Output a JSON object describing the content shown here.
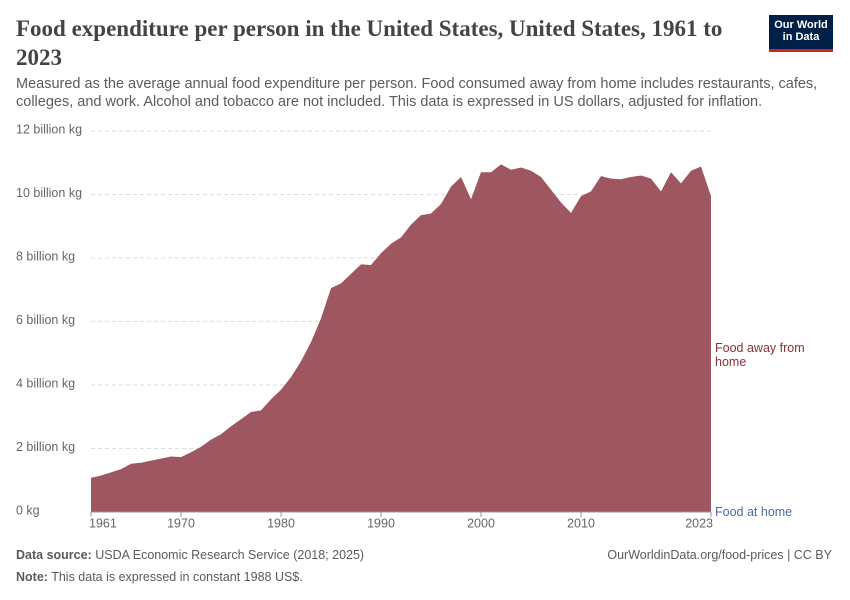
{
  "chart_data": {
    "type": "stacked_area",
    "title": "Food expenditure per person in the United States, United States, 1961 to 2023",
    "subtitle": "Measured as the average annual food expenditure per person. Food consumed away from home includes restaurants, cafes, colleges, and work. Alcohol and tobacco are not included. This data is expressed in US dollars, adjusted for inflation.",
    "logo": [
      "Our World",
      "in Data"
    ],
    "source_label": "Data source:",
    "source": "USDA Economic Research Service (2018; 2025)",
    "note_label": "Note:",
    "note": "This data is expressed in constant 1988 US$.",
    "credit": "OurWorldinData.org/food-prices | CC BY",
    "x": [
      1961,
      1962,
      1963,
      1964,
      1965,
      1966,
      1967,
      1968,
      1969,
      1970,
      1971,
      1972,
      1973,
      1974,
      1975,
      1976,
      1977,
      1978,
      1979,
      1980,
      1981,
      1982,
      1983,
      1984,
      1985,
      1986,
      1987,
      1988,
      1989,
      1990,
      1991,
      1992,
      1993,
      1994,
      1995,
      1996,
      1997,
      1998,
      1999,
      2000,
      2001,
      2002,
      2003,
      2004,
      2005,
      2006,
      2007,
      2008,
      2009,
      2010,
      2011,
      2012,
      2013,
      2014,
      2015,
      2016,
      2017,
      2018,
      2019,
      2020,
      2021,
      2022,
      2023
    ],
    "xlim": [
      1961,
      2023
    ],
    "xticks": [
      1961,
      1970,
      1980,
      1990,
      2000,
      2010,
      2023
    ],
    "ylim": [
      0,
      12
    ],
    "yticks": [
      {
        "value": 0,
        "label": "0 kg"
      },
      {
        "value": 2,
        "label": "2 billion kg"
      },
      {
        "value": 4,
        "label": "4 billion kg"
      },
      {
        "value": 6,
        "label": "6 billion kg"
      },
      {
        "value": 8,
        "label": "8 billion kg"
      },
      {
        "value": 10,
        "label": "10 billion kg"
      },
      {
        "value": 12,
        "label": "12 billion kg"
      }
    ],
    "grid": true,
    "series": [
      {
        "name": "Food at home",
        "color": "#4c6a9c",
        "values": [
          0,
          0,
          0,
          0,
          0,
          0,
          0,
          0,
          0,
          0,
          0,
          0,
          0,
          0,
          0,
          0,
          0,
          0,
          0,
          0,
          0,
          0,
          0,
          0,
          0,
          0,
          0,
          0,
          0,
          0,
          0,
          0,
          0,
          0,
          0,
          0,
          0,
          0,
          0,
          0,
          0,
          0,
          0,
          0,
          0,
          0,
          0,
          0,
          0,
          0,
          0,
          0,
          0,
          0,
          0,
          0,
          0,
          0,
          0,
          0,
          0,
          0,
          0
        ]
      },
      {
        "name": "Food away from home",
        "color": "#9e5660",
        "values": [
          1.08,
          1.15,
          1.25,
          1.35,
          1.52,
          1.55,
          1.62,
          1.68,
          1.75,
          1.73,
          1.88,
          2.05,
          2.28,
          2.45,
          2.7,
          2.92,
          3.15,
          3.2,
          3.55,
          3.85,
          4.25,
          4.75,
          5.35,
          6.1,
          7.05,
          7.2,
          7.5,
          7.8,
          7.78,
          8.15,
          8.45,
          8.65,
          9.05,
          9.35,
          9.4,
          9.7,
          10.25,
          10.55,
          9.85,
          10.7,
          10.7,
          10.95,
          10.78,
          10.85,
          10.75,
          10.55,
          10.15,
          9.75,
          9.42,
          9.95,
          10.1,
          10.58,
          10.5,
          10.48,
          10.55,
          10.6,
          10.5,
          10.1,
          10.7,
          10.35,
          10.75,
          10.88,
          9.95
        ]
      }
    ]
  }
}
